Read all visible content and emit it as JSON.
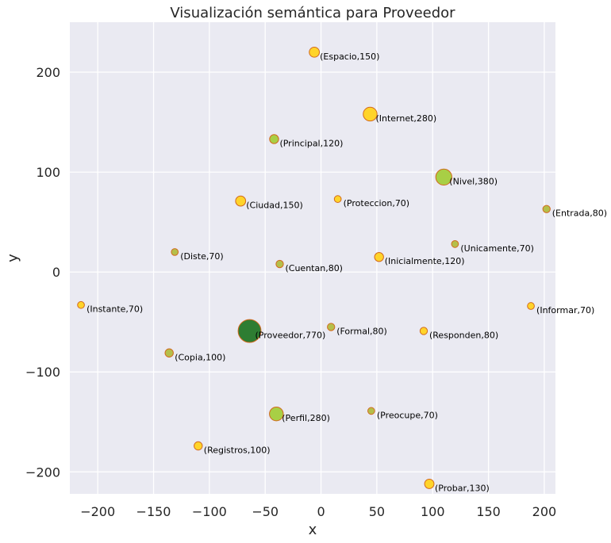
{
  "chart_data": {
    "type": "scatter",
    "title": "Visualización semántica para Proveedor",
    "xlabel": "x",
    "ylabel": "y",
    "xlim": [
      -225,
      210
    ],
    "ylim": [
      -222,
      250
    ],
    "xticks": [
      -200,
      -150,
      -100,
      -50,
      0,
      50,
      100,
      150,
      200
    ],
    "yticks": [
      -200,
      -100,
      0,
      100,
      200
    ],
    "xtick_labels": [
      "−200",
      "−150",
      "−100",
      "−50",
      "0",
      "50",
      "100",
      "150",
      "200"
    ],
    "ytick_labels": [
      "−200",
      "−100",
      "0",
      "100",
      "200"
    ],
    "grid": true,
    "points": [
      {
        "label": "(Espacio,150)",
        "word": "Espacio",
        "weight": 150,
        "x": -6,
        "y": 220,
        "color": "#ffd42a"
      },
      {
        "label": "(Internet,280)",
        "word": "Internet",
        "weight": 280,
        "x": 44,
        "y": 158,
        "color": "#ffd42a"
      },
      {
        "label": "(Principal,120)",
        "word": "Principal",
        "weight": 120,
        "x": -42,
        "y": 133,
        "color": "#a8cf45"
      },
      {
        "label": "(Nivel,380)",
        "word": "Nivel",
        "weight": 380,
        "x": 110,
        "y": 95,
        "color": "#a8cf45"
      },
      {
        "label": "(Ciudad,150)",
        "word": "Ciudad",
        "weight": 150,
        "x": -72,
        "y": 71,
        "color": "#ffd42a"
      },
      {
        "label": "(Proteccion,70)",
        "word": "Proteccion",
        "weight": 70,
        "x": 15,
        "y": 73,
        "color": "#ffd42a"
      },
      {
        "label": "(Entrada,80)",
        "word": "Entrada",
        "weight": 80,
        "x": 202,
        "y": 63,
        "color": "#b5bf4a"
      },
      {
        "label": "(Unicamente,70)",
        "word": "Unicamente",
        "weight": 70,
        "x": 120,
        "y": 28,
        "color": "#b5bf4a"
      },
      {
        "label": "(Diste,70)",
        "word": "Diste",
        "weight": 70,
        "x": -131,
        "y": 20,
        "color": "#b5bf4a"
      },
      {
        "label": "(Cuentan,80)",
        "word": "Cuentan",
        "weight": 80,
        "x": -37,
        "y": 8,
        "color": "#b5bf4a"
      },
      {
        "label": "(Inicialmente,120)",
        "word": "Inicialmente",
        "weight": 120,
        "x": 52,
        "y": 15,
        "color": "#ffd42a"
      },
      {
        "label": "(Instante,70)",
        "word": "Instante",
        "weight": 70,
        "x": -215,
        "y": -33,
        "color": "#ffd42a"
      },
      {
        "label": "(Informar,70)",
        "word": "Informar",
        "weight": 70,
        "x": 188,
        "y": -34,
        "color": "#ffd42a"
      },
      {
        "label": "(Proveedor,770)",
        "word": "Proveedor",
        "weight": 770,
        "x": -64,
        "y": -59,
        "color": "#2e7d32"
      },
      {
        "label": "(Formal,80)",
        "word": "Formal",
        "weight": 80,
        "x": 9,
        "y": -55,
        "color": "#b5bf4a"
      },
      {
        "label": "(Responden,80)",
        "word": "Responden",
        "weight": 80,
        "x": 92,
        "y": -59,
        "color": "#ffd42a"
      },
      {
        "label": "(Copia,100)",
        "word": "Copia",
        "weight": 100,
        "x": -136,
        "y": -81,
        "color": "#b5bf4a"
      },
      {
        "label": "(Perfil,280)",
        "word": "Perfil",
        "weight": 280,
        "x": -40,
        "y": -142,
        "color": "#a8cf45"
      },
      {
        "label": "(Preocupe,70)",
        "word": "Preocupe",
        "weight": 70,
        "x": 45,
        "y": -139,
        "color": "#b5bf4a"
      },
      {
        "label": "(Registros,100)",
        "word": "Registros",
        "weight": 100,
        "x": -110,
        "y": -174,
        "color": "#ffd42a"
      },
      {
        "label": "(Probar,130)",
        "word": "Probar",
        "weight": 130,
        "x": 97,
        "y": -212,
        "color": "#ffd42a"
      }
    ],
    "colors": {
      "background": "#eaeaf2",
      "grid": "#ffffff",
      "marker_edge": "#d2691e"
    }
  }
}
